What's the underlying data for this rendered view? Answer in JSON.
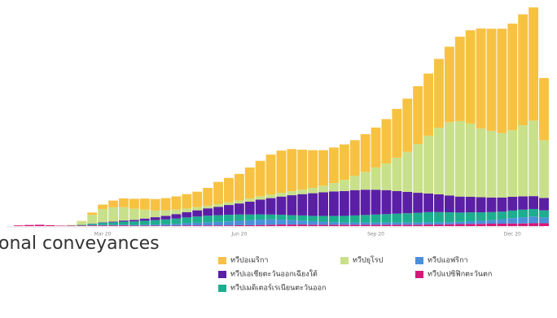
{
  "chart_data": {
    "type": "stacked_bar",
    "title": "onal conveyances",
    "categories": [
      null,
      null,
      null,
      null,
      null,
      null,
      null,
      null,
      null,
      "Mar 20",
      null,
      null,
      null,
      null,
      null,
      null,
      null,
      null,
      null,
      null,
      null,
      null,
      "Jun 20",
      null,
      null,
      null,
      null,
      null,
      null,
      null,
      null,
      null,
      null,
      null,
      null,
      "Sep 20",
      null,
      null,
      null,
      null,
      null,
      null,
      null,
      null,
      null,
      null,
      null,
      null,
      "Dec 20",
      null,
      null,
      null
    ],
    "ylim": [
      0,
      100
    ],
    "series": [
      {
        "name": "ทวีปอเมริกา",
        "color": "#f7c242",
        "values": [
          0,
          0,
          0,
          0,
          0,
          0,
          0,
          0.2,
          1,
          2,
          3,
          4,
          4.5,
          5,
          5.2,
          5.5,
          6,
          6.5,
          7,
          8,
          10,
          11,
          12,
          14,
          16,
          18,
          19,
          19,
          18,
          17,
          16,
          16,
          16,
          16,
          17,
          18,
          20,
          22,
          24,
          26,
          28,
          31,
          34,
          38,
          42,
          45,
          46,
          47,
          48,
          50,
          51,
          28
        ]
      },
      {
        "name": "ทวีปยุโรป",
        "color": "#c8e08a",
        "values": [
          0,
          0,
          0,
          0,
          0,
          0,
          0.2,
          1.5,
          4,
          6,
          6.5,
          6,
          5,
          4,
          3,
          2.5,
          2,
          1.6,
          1.4,
          1.2,
          1.2,
          1.2,
          1.3,
          1.4,
          1.5,
          1.6,
          1.7,
          1.8,
          2,
          2.4,
          3,
          3.8,
          5,
          6.5,
          8,
          10,
          12,
          15,
          18,
          22,
          26,
          30,
          33,
          34,
          33,
          31,
          30,
          29,
          30,
          32,
          34,
          26
        ]
      },
      {
        "name": "ทวีปแอฟริกา",
        "color": "#4a90d9",
        "values": [
          0,
          0,
          0,
          0,
          0,
          0,
          0,
          0,
          0.1,
          0.2,
          0.2,
          0.3,
          0.3,
          0.4,
          0.5,
          0.6,
          0.8,
          1,
          1.2,
          1.4,
          1.6,
          1.8,
          2,
          2.2,
          2.4,
          2.4,
          2.2,
          2,
          1.8,
          1.6,
          1.4,
          1.2,
          1,
          1,
          1,
          1,
          1,
          1,
          1,
          1,
          1,
          1,
          1,
          1,
          1.2,
          1.4,
          1.6,
          2,
          2.4,
          2.8,
          3,
          2.6
        ]
      },
      {
        "name": "ทวีปเอเชียตะวันออกเฉียงใต้",
        "color": "#5b1fa6",
        "values": [
          0,
          0,
          0,
          0,
          0,
          0,
          0,
          0,
          0.1,
          0.2,
          0.3,
          0.5,
          0.7,
          1,
          1.3,
          1.6,
          2,
          2.4,
          2.8,
          3.3,
          3.8,
          4.4,
          5,
          5.8,
          6.6,
          7.4,
          8.2,
          9,
          9.6,
          10.2,
          10.6,
          11,
          11.2,
          11.4,
          11.4,
          11.2,
          10.8,
          10.2,
          9.6,
          9,
          8.4,
          8,
          7.6,
          7.2,
          7,
          6.8,
          6.6,
          6.4,
          6.2,
          6,
          5.8,
          5.6
        ]
      },
      {
        "name": "ทวีปแปซิฟิกตะวันตก",
        "color": "#d6177a",
        "values": [
          0,
          0.3,
          0.5,
          0.6,
          0.4,
          0.2,
          0.2,
          0.3,
          0.3,
          0.3,
          0.3,
          0.3,
          0.2,
          0.2,
          0.2,
          0.2,
          0.2,
          0.3,
          0.3,
          0.3,
          0.3,
          0.3,
          0.4,
          0.4,
          0.5,
          0.6,
          0.7,
          0.7,
          0.7,
          0.6,
          0.6,
          0.6,
          0.6,
          0.6,
          0.6,
          0.6,
          0.6,
          0.6,
          0.6,
          0.6,
          0.7,
          0.7,
          0.8,
          0.9,
          1,
          1,
          1.1,
          1.1,
          1.2,
          1.2,
          1.3,
          1.3
        ]
      },
      {
        "name": "ทวีปเมดิเตอร์เรเนียนตะวันออก",
        "color": "#1cae8f",
        "values": [
          0,
          0,
          0,
          0,
          0,
          0,
          0.1,
          0.3,
          0.6,
          1,
          1.2,
          1.4,
          1.6,
          1.8,
          2,
          2.2,
          2.4,
          2.6,
          2.8,
          3,
          3,
          3,
          2.8,
          2.6,
          2.4,
          2.2,
          2.2,
          2.2,
          2.3,
          2.4,
          2.6,
          2.8,
          3,
          3.2,
          3.4,
          3.6,
          3.8,
          4,
          4.2,
          4.4,
          4.6,
          4.6,
          4.4,
          4.2,
          4,
          3.8,
          3.6,
          3.4,
          3.4,
          3.4,
          3.4,
          3.2
        ]
      }
    ]
  }
}
